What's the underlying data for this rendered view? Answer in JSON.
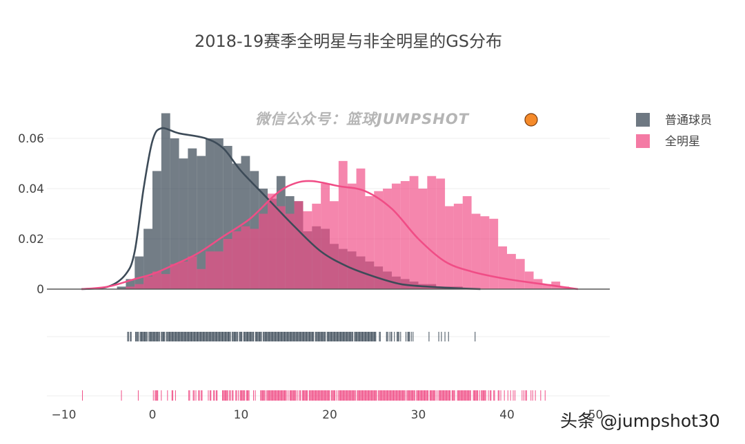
{
  "chart_data": {
    "type": "histogram",
    "title": "2018-19赛季全明星与非全明星的GS分布",
    "xlabel": "",
    "ylabel": "",
    "xlim": [
      -11,
      52
    ],
    "ylim": [
      0,
      0.07
    ],
    "x_ticks": [
      -10,
      0,
      10,
      20,
      30,
      40,
      50
    ],
    "x_tick_labels": [
      "−10",
      "0",
      "10",
      "20",
      "30",
      "40",
      "50"
    ],
    "y_ticks": [
      0,
      0.02,
      0.04,
      0.06
    ],
    "y_tick_labels": [
      "0",
      "0.02",
      "0.04",
      "0.06"
    ],
    "grid": true,
    "legend_position": "top-right",
    "bin_width": 1,
    "bin_start": -6,
    "series": [
      {
        "name": "普通球员",
        "color": "#3d4b58",
        "histogram": [
          0,
          0,
          0.001,
          0.004,
          0.013,
          0.024,
          0.047,
          0.07,
          0.06,
          0.052,
          0.056,
          0.053,
          0.06,
          0.06,
          0.057,
          0.05,
          0.053,
          0.047,
          0.04,
          0.036,
          0.045,
          0.037,
          0.035,
          0.023,
          0.025,
          0.024,
          0.018,
          0.016,
          0.015,
          0.013,
          0.011,
          0.009,
          0.007,
          0.005,
          0.004,
          0.003,
          0.002,
          0.002,
          0.001,
          0.001,
          0.001,
          0,
          0,
          0
        ],
        "kde": [
          [
            -8,
            0.0
          ],
          [
            -5,
            0.001
          ],
          [
            -3,
            0.006
          ],
          [
            -2,
            0.015
          ],
          [
            -1,
            0.04
          ],
          [
            0,
            0.059
          ],
          [
            1,
            0.064
          ],
          [
            3,
            0.062
          ],
          [
            6,
            0.06
          ],
          [
            8,
            0.056
          ],
          [
            10,
            0.047
          ],
          [
            13,
            0.036
          ],
          [
            16,
            0.025
          ],
          [
            19,
            0.015
          ],
          [
            22,
            0.009
          ],
          [
            25,
            0.005
          ],
          [
            28,
            0.002
          ],
          [
            31,
            0.001
          ],
          [
            34,
            0.0004
          ],
          [
            37,
            0.0
          ]
        ],
        "rug": "dense strip from about -8 to 37"
      },
      {
        "name": "全明星",
        "color": "#f04d86",
        "histogram": [
          0,
          0,
          0,
          0.001,
          0.002,
          0.005,
          0.007,
          0.006,
          0.01,
          0.011,
          0.013,
          0.008,
          0.015,
          0.015,
          0.02,
          0.023,
          0.025,
          0.024,
          0.03,
          0.038,
          0.033,
          0.03,
          0.035,
          0.031,
          0.034,
          0.042,
          0.035,
          0.051,
          0.042,
          0.048,
          0.037,
          0.039,
          0.04,
          0.042,
          0.043,
          0.045,
          0.04,
          0.045,
          0.044,
          0.033,
          0.034,
          0.037,
          0.03,
          0.029,
          0.028,
          0.017,
          0.014,
          0.012,
          0.007,
          0.004,
          0.002,
          0.003,
          0.001,
          0,
          0
        ],
        "kde": [
          [
            -8,
            0.0
          ],
          [
            -5,
            0.001
          ],
          [
            -2,
            0.004
          ],
          [
            0,
            0.006
          ],
          [
            2,
            0.009
          ],
          [
            5,
            0.014
          ],
          [
            8,
            0.021
          ],
          [
            11,
            0.028
          ],
          [
            14,
            0.038
          ],
          [
            16,
            0.042
          ],
          [
            18,
            0.043
          ],
          [
            21,
            0.041
          ],
          [
            24,
            0.039
          ],
          [
            27,
            0.032
          ],
          [
            30,
            0.02
          ],
          [
            33,
            0.011
          ],
          [
            36,
            0.007
          ],
          [
            40,
            0.004
          ],
          [
            44,
            0.002
          ],
          [
            48,
            0.0
          ]
        ],
        "rug": "sparse strip from about -8 to 48"
      }
    ]
  },
  "watermark": "微信公众号：篮球JUMPSHOT",
  "credit": "头条 @jumpshot30"
}
